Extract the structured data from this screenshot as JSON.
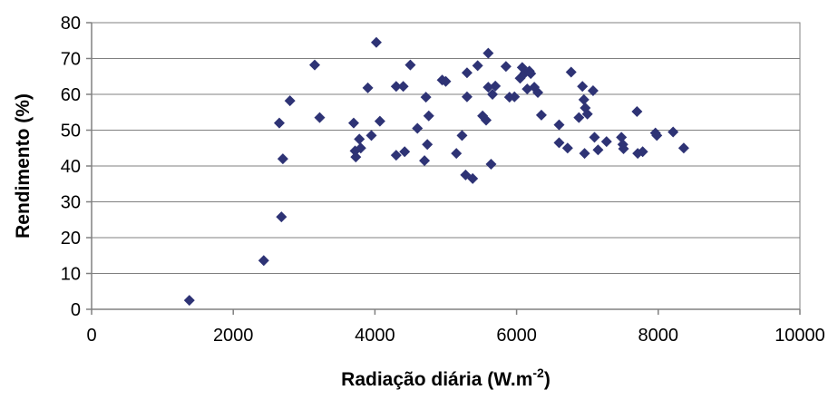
{
  "chart_data": {
    "type": "scatter",
    "title": "",
    "xlabel": "Radiação diária (W.m",
    "xlabel_sup": "-2",
    "xlabel_tail": ")",
    "ylabel": "Rendimento (%)",
    "xlim": [
      0,
      10000
    ],
    "ylim": [
      0,
      80
    ],
    "x_ticks": [
      "0",
      "2000",
      "4000",
      "6000",
      "8000",
      "10000"
    ],
    "y_ticks": [
      "0",
      "10",
      "20",
      "30",
      "40",
      "50",
      "60",
      "70",
      "80"
    ],
    "grid": "horizontal",
    "legend": "none",
    "marker": "diamond",
    "marker_color": "#2e3375",
    "series": [
      {
        "points": [
          [
            1380,
            2.5
          ],
          [
            2430,
            13.6
          ],
          [
            2680,
            25.8
          ],
          [
            2650,
            52.0
          ],
          [
            2700,
            42.0
          ],
          [
            2800,
            58.2
          ],
          [
            3150,
            68.2
          ],
          [
            3220,
            53.5
          ],
          [
            3700,
            52.0
          ],
          [
            3720,
            44.2
          ],
          [
            3730,
            42.5
          ],
          [
            3780,
            47.5
          ],
          [
            3800,
            45.0
          ],
          [
            3900,
            61.8
          ],
          [
            3950,
            48.5
          ],
          [
            4020,
            74.5
          ],
          [
            4070,
            52.5
          ],
          [
            4300,
            62.2
          ],
          [
            4300,
            43.0
          ],
          [
            4400,
            62.2
          ],
          [
            4420,
            44.0
          ],
          [
            4500,
            68.2
          ],
          [
            4600,
            50.5
          ],
          [
            4700,
            41.5
          ],
          [
            4720,
            59.2
          ],
          [
            4740,
            46.0
          ],
          [
            4760,
            54.0
          ],
          [
            4950,
            64.0
          ],
          [
            5000,
            63.6
          ],
          [
            5150,
            43.5
          ],
          [
            5230,
            48.5
          ],
          [
            5280,
            37.5
          ],
          [
            5300,
            59.3
          ],
          [
            5300,
            66.0
          ],
          [
            5380,
            36.5
          ],
          [
            5450,
            68.0
          ],
          [
            5520,
            54.0
          ],
          [
            5570,
            52.8
          ],
          [
            5600,
            71.5
          ],
          [
            5600,
            62.0
          ],
          [
            5640,
            40.5
          ],
          [
            5660,
            60.0
          ],
          [
            5700,
            62.3
          ],
          [
            5850,
            67.8
          ],
          [
            5900,
            59.2
          ],
          [
            5970,
            59.3
          ],
          [
            6050,
            64.5
          ],
          [
            6080,
            67.5
          ],
          [
            6120,
            66.0
          ],
          [
            6150,
            61.5
          ],
          [
            6180,
            66.5
          ],
          [
            6200,
            65.8
          ],
          [
            6250,
            62.0
          ],
          [
            6300,
            60.5
          ],
          [
            6350,
            54.2
          ],
          [
            6600,
            51.5
          ],
          [
            6600,
            46.5
          ],
          [
            6720,
            45.0
          ],
          [
            6770,
            66.2
          ],
          [
            6880,
            53.5
          ],
          [
            6930,
            62.2
          ],
          [
            6950,
            58.5
          ],
          [
            6960,
            43.5
          ],
          [
            6970,
            56.2
          ],
          [
            7000,
            54.5
          ],
          [
            7080,
            61.0
          ],
          [
            7100,
            48.0
          ],
          [
            7150,
            44.5
          ],
          [
            7270,
            46.8
          ],
          [
            7480,
            48.0
          ],
          [
            7500,
            46.0
          ],
          [
            7510,
            44.8
          ],
          [
            7700,
            55.2
          ],
          [
            7710,
            43.5
          ],
          [
            7780,
            44.0
          ],
          [
            7960,
            49.2
          ],
          [
            7980,
            48.5
          ],
          [
            8210,
            49.5
          ],
          [
            8360,
            45.0
          ]
        ]
      }
    ]
  }
}
